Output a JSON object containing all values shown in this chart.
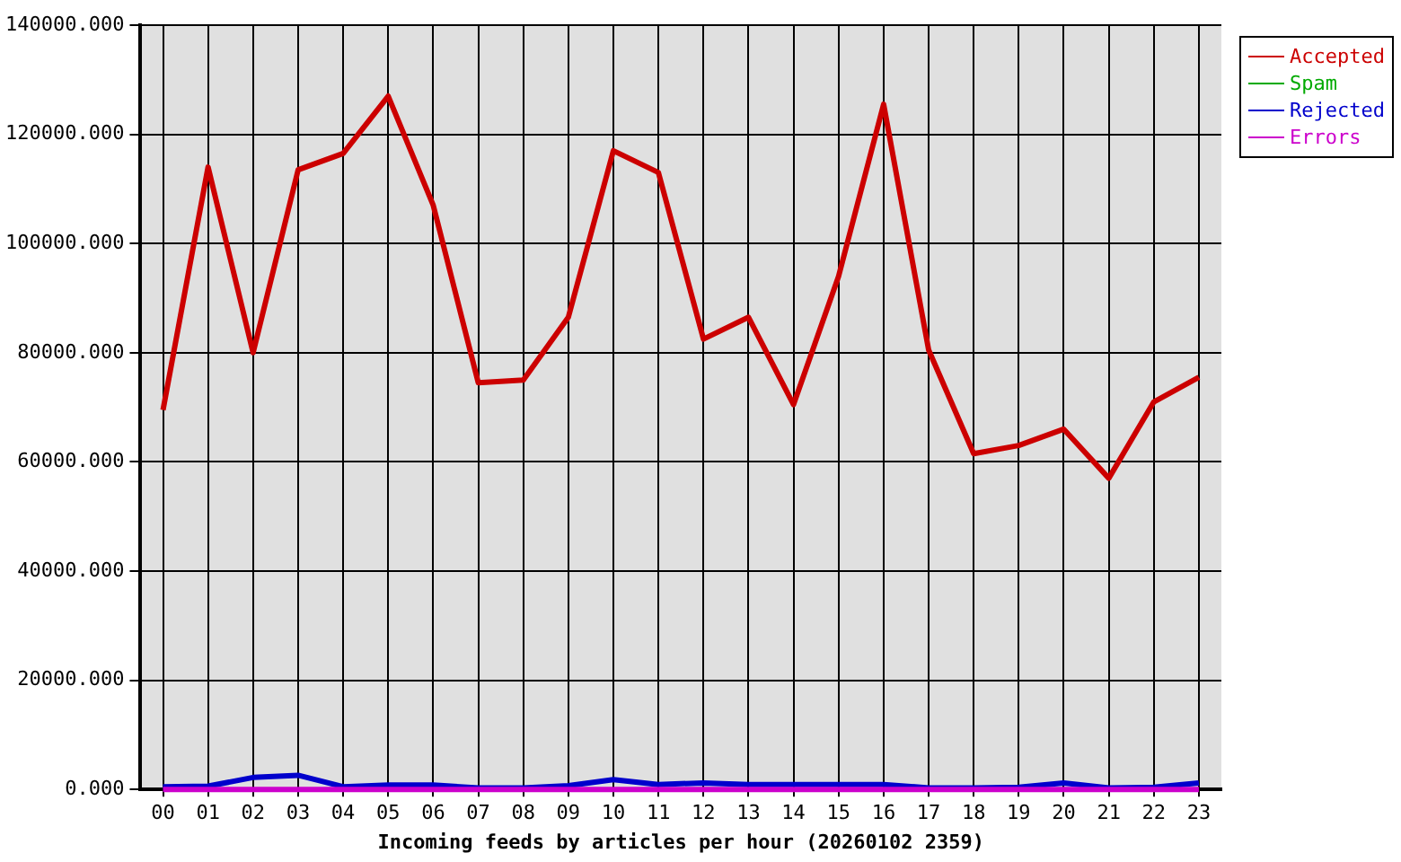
{
  "chart_data": {
    "type": "line",
    "xlabel": "Incoming feeds by articles per hour (20260102 2359)",
    "categories": [
      "00",
      "01",
      "02",
      "03",
      "04",
      "05",
      "06",
      "07",
      "08",
      "09",
      "10",
      "11",
      "12",
      "13",
      "14",
      "15",
      "16",
      "17",
      "18",
      "19",
      "20",
      "21",
      "22",
      "23"
    ],
    "series": [
      {
        "name": "Accepted",
        "color": "#cc0000",
        "values": [
          69500,
          114000,
          80000,
          113500,
          116500,
          127000,
          107000,
          74500,
          75000,
          86500,
          117000,
          113000,
          82500,
          86500,
          70500,
          94000,
          125500,
          80500,
          61500,
          63000,
          66000,
          57000,
          71000,
          75500
        ]
      },
      {
        "name": "Spam",
        "color": "#00aa00",
        "values": [
          null,
          null,
          null,
          null,
          null,
          null,
          null,
          null,
          null,
          null,
          null,
          null,
          null,
          null,
          null,
          null,
          null,
          null,
          null,
          null,
          null,
          null,
          null,
          null
        ]
      },
      {
        "name": "Rejected",
        "color": "#0000cc",
        "values": [
          500,
          600,
          2200,
          2600,
          500,
          800,
          800,
          300,
          300,
          700,
          1800,
          900,
          1200,
          900,
          900,
          900,
          900,
          300,
          300,
          400,
          1200,
          300,
          400,
          1200
        ]
      },
      {
        "name": "Errors",
        "color": "#cc00cc",
        "values": [
          0,
          0,
          0,
          0,
          0,
          0,
          0,
          0,
          0,
          0,
          0,
          0,
          0,
          0,
          0,
          0,
          0,
          0,
          0,
          0,
          0,
          0,
          0,
          0
        ]
      }
    ],
    "ylim": [
      0,
      140000
    ],
    "yticks": [
      {
        "value": 0,
        "label": "0.000"
      },
      {
        "value": 20000,
        "label": "20000.000"
      },
      {
        "value": 40000,
        "label": "40000.000"
      },
      {
        "value": 60000,
        "label": "60000.000"
      },
      {
        "value": 80000,
        "label": "80000.000"
      },
      {
        "value": 100000,
        "label": "100000.000"
      },
      {
        "value": 120000,
        "label": "120000.000"
      },
      {
        "value": 140000,
        "label": "140000.000"
      }
    ],
    "grid": true,
    "legend": "top right",
    "marker": "none",
    "line_style": "solid"
  }
}
